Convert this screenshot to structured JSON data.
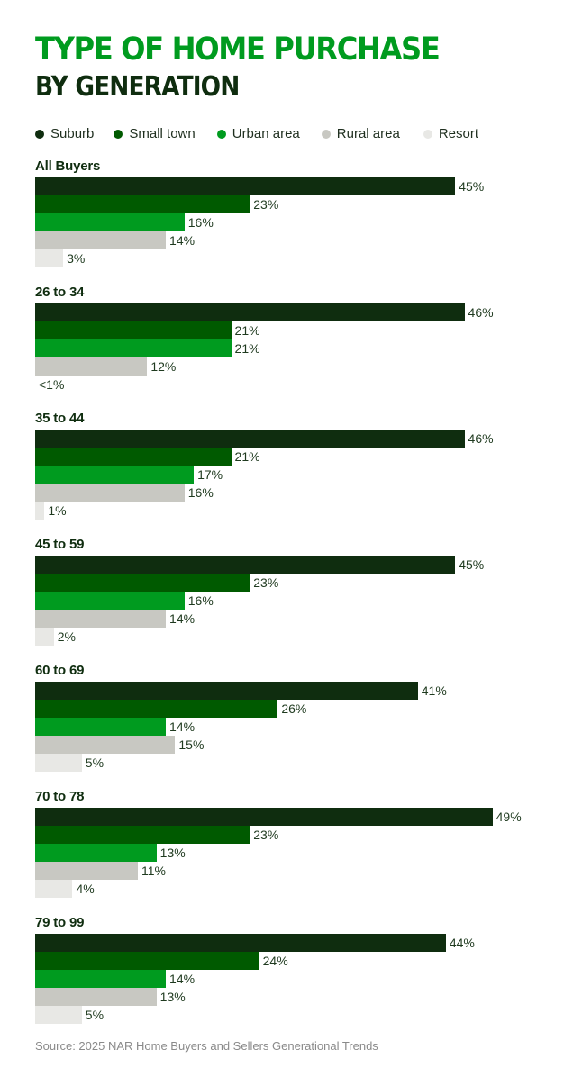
{
  "header": {
    "title_line1": "TYPE OF HOME PURCHASE",
    "title_line2": "BY GENERATION"
  },
  "legend": [
    {
      "label": "Suburb",
      "color": "#0f2d0f"
    },
    {
      "label": "Small town",
      "color": "#005a00"
    },
    {
      "label": "Urban area",
      "color": "#009b1f"
    },
    {
      "label": "Rural area",
      "color": "#c8c8c2"
    },
    {
      "label": "Resort",
      "color": "#e8e8e5"
    }
  ],
  "groups": [
    {
      "label": "All Buyers",
      "values": [
        "45%",
        "23%",
        "16%",
        "14%",
        "3%"
      ]
    },
    {
      "label": "26 to 34",
      "values": [
        "46%",
        "21%",
        "21%",
        "12%",
        "<1%"
      ]
    },
    {
      "label": "35 to 44",
      "values": [
        "46%",
        "21%",
        "17%",
        "16%",
        "1%"
      ]
    },
    {
      "label": "45 to 59",
      "values": [
        "45%",
        "23%",
        "16%",
        "14%",
        "2%"
      ]
    },
    {
      "label": "60 to 69",
      "values": [
        "41%",
        "26%",
        "14%",
        "15%",
        "5%"
      ]
    },
    {
      "label": "70 to 78",
      "values": [
        "49%",
        "23%",
        "13%",
        "11%",
        "4%"
      ]
    },
    {
      "label": "79 to 99",
      "values": [
        "44%",
        "24%",
        "14%",
        "13%",
        "5%"
      ]
    }
  ],
  "footer": {
    "source": "Source: 2025 NAR Home Buyers and Sellers Generational Trends"
  },
  "chart_data": {
    "type": "bar",
    "orientation": "horizontal",
    "title": "TYPE OF HOME PURCHASE BY GENERATION",
    "categories": [
      "All Buyers",
      "26 to 34",
      "35 to 44",
      "45 to 59",
      "60 to 69",
      "70 to 78",
      "79 to 99"
    ],
    "series": [
      {
        "name": "Suburb",
        "color": "#0f2d0f",
        "values": [
          45,
          46,
          46,
          45,
          41,
          49,
          44
        ]
      },
      {
        "name": "Small town",
        "color": "#005a00",
        "values": [
          23,
          21,
          21,
          23,
          26,
          23,
          24
        ]
      },
      {
        "name": "Urban area",
        "color": "#009b1f",
        "values": [
          16,
          21,
          17,
          16,
          14,
          13,
          14
        ]
      },
      {
        "name": "Rural area",
        "color": "#c8c8c2",
        "values": [
          14,
          12,
          16,
          14,
          15,
          11,
          13
        ]
      },
      {
        "name": "Resort",
        "color": "#e8e8e5",
        "values": [
          3,
          0.5,
          1,
          2,
          5,
          4,
          5
        ]
      }
    ],
    "value_labels_note": "26 to 34 Resort value shown as <1%",
    "xlabel": "",
    "ylabel": "",
    "unit": "%",
    "grid": false,
    "legend_position": "top",
    "source": "Source: 2025 NAR Home Buyers and Sellers Generational Trends"
  }
}
